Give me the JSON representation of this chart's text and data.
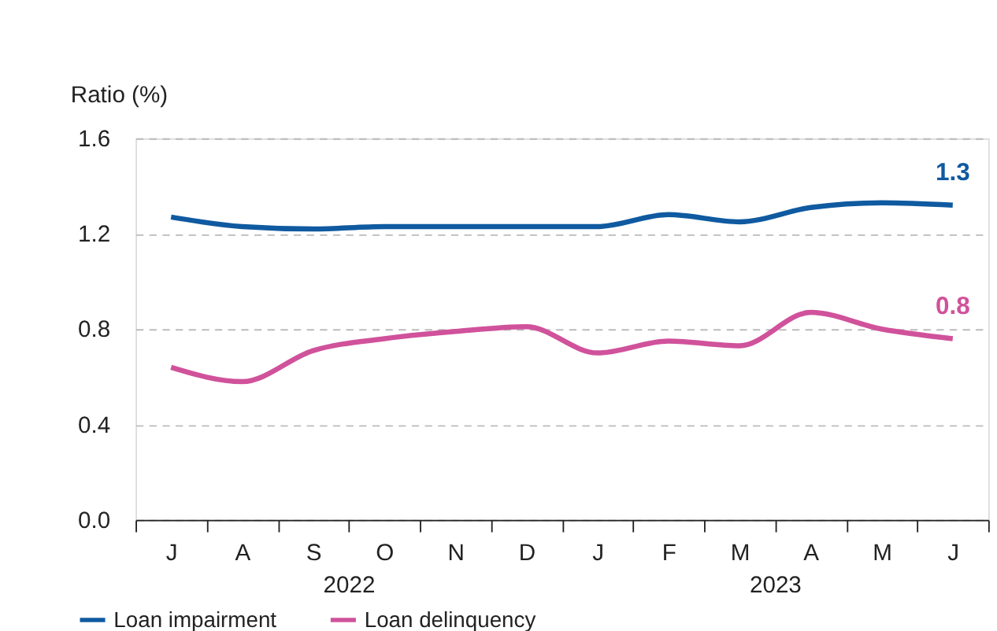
{
  "chart_data": {
    "type": "line",
    "ylabel": "Ratio (%)",
    "categories": [
      "J",
      "A",
      "S",
      "O",
      "N",
      "D",
      "J",
      "F",
      "M",
      "A",
      "M",
      "J"
    ],
    "series": [
      {
        "name": "Loan impairment",
        "color": "#0f5aa0",
        "values": [
          1.27,
          1.23,
          1.22,
          1.23,
          1.23,
          1.23,
          1.23,
          1.28,
          1.25,
          1.31,
          1.33,
          1.32
        ],
        "value_labels": [
          null,
          null,
          null,
          null,
          null,
          null,
          null,
          null,
          null,
          null,
          null,
          "1.3"
        ]
      },
      {
        "name": "Loan delinquency",
        "color": "#d0529b",
        "values": [
          0.64,
          0.58,
          0.71,
          0.76,
          0.79,
          0.81,
          0.7,
          0.75,
          0.73,
          0.87,
          0.8,
          0.76
        ],
        "value_labels": [
          null,
          null,
          null,
          null,
          null,
          null,
          null,
          null,
          null,
          null,
          null,
          "0.8"
        ]
      }
    ],
    "annotations": [
      "2022",
      "2023"
    ],
    "ylim": [
      0,
      1.6
    ],
    "yticks": [
      {
        "value": 0,
        "label": "0.0"
      },
      0.4,
      0.8,
      1.2,
      1.6
    ],
    "grid": "y",
    "legend": "bottom left"
  }
}
